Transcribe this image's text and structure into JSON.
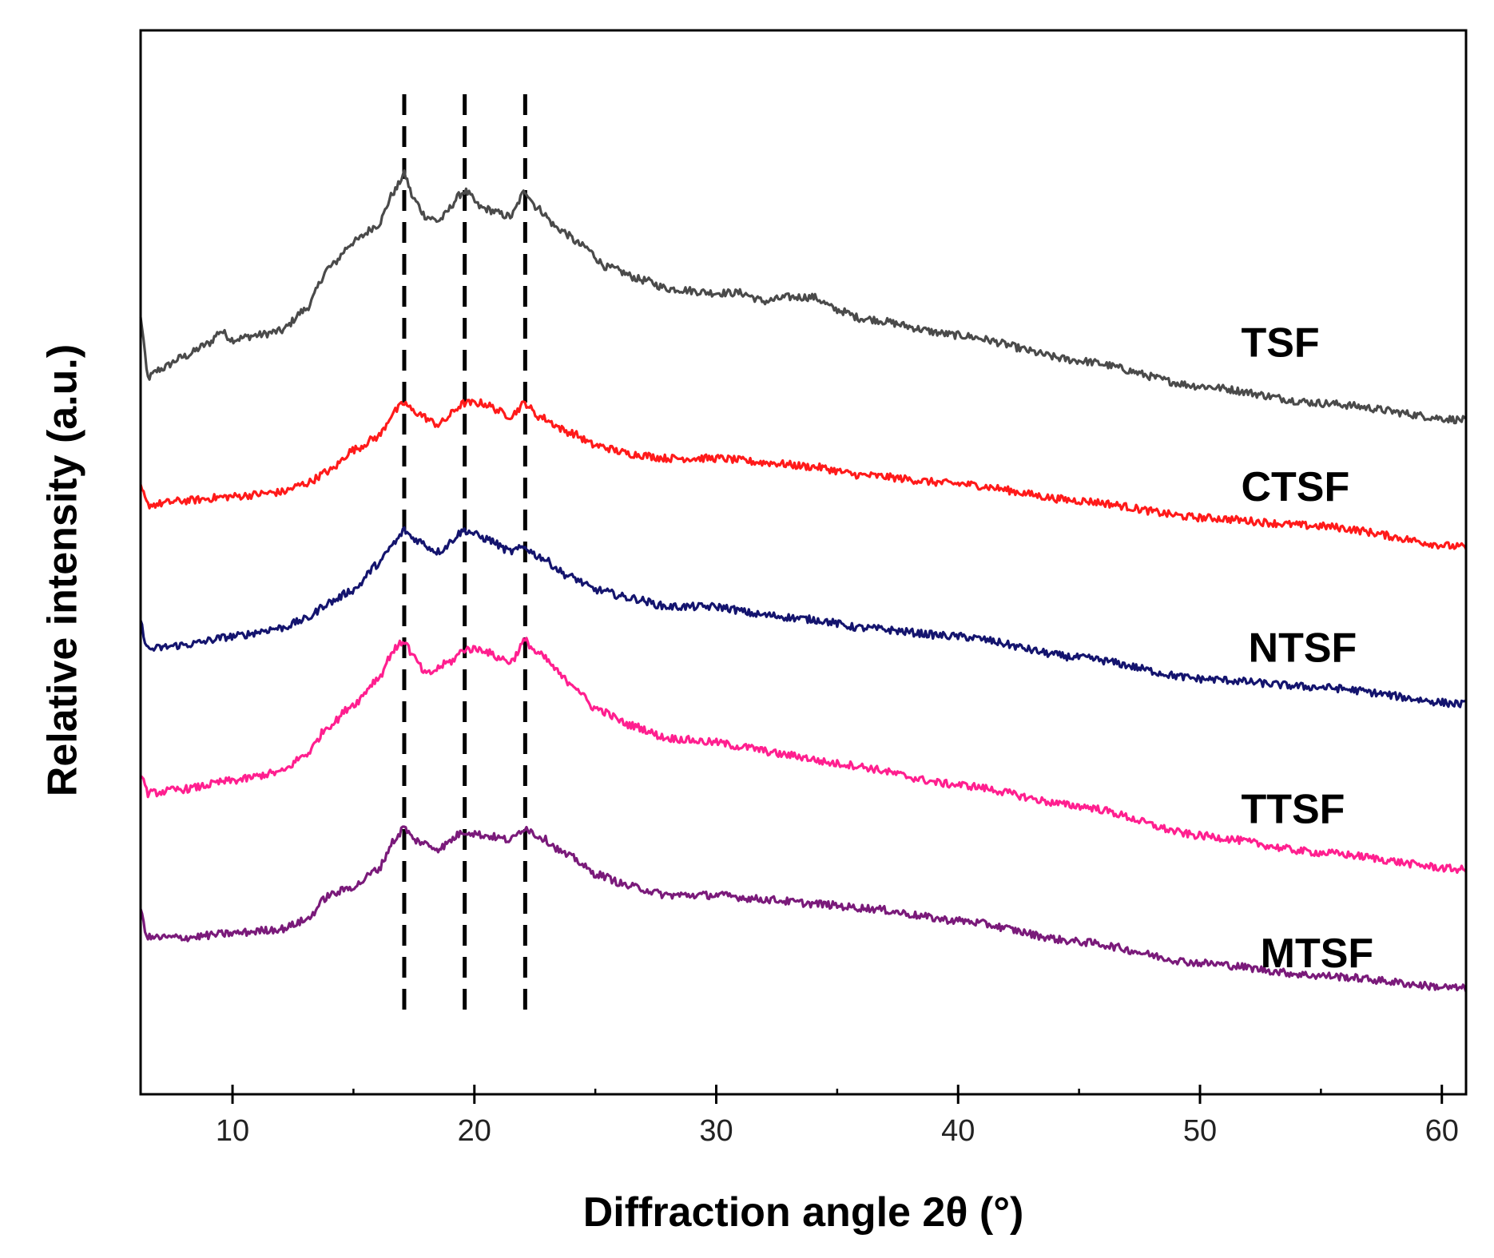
{
  "chart_data": {
    "type": "line",
    "title": "",
    "xlabel": "Diffraction angle 2θ (°)",
    "ylabel": "Relative intensity (a.u.)",
    "xlim": [
      6.2,
      61
    ],
    "ylim": [
      0,
      100
    ],
    "x_ticks": [
      10,
      20,
      30,
      40,
      50,
      60
    ],
    "x_minor_ticks": [
      15,
      25,
      35,
      45,
      55
    ],
    "reference_lines_x": [
      17.1,
      19.6,
      22.1
    ],
    "series": [
      {
        "name": "TSF",
        "color": "#4a4a4a",
        "label_anchor": [
          51.7,
          78.5
        ],
        "points": [
          [
            6.2,
            83
          ],
          [
            6.5,
            76
          ],
          [
            7,
            77
          ],
          [
            8,
            78.5
          ],
          [
            9,
            80
          ],
          [
            9.5,
            81.5
          ],
          [
            10,
            80.5
          ],
          [
            11,
            81
          ],
          [
            12,
            81.5
          ],
          [
            13,
            84
          ],
          [
            14,
            89
          ],
          [
            15,
            92
          ],
          [
            16,
            94
          ],
          [
            16.7,
            98
          ],
          [
            17.1,
            100
          ],
          [
            17.5,
            97
          ],
          [
            18,
            95
          ],
          [
            18.5,
            94.5
          ],
          [
            19.6,
            98
          ],
          [
            20.3,
            96
          ],
          [
            21.5,
            95
          ],
          [
            22.1,
            98
          ],
          [
            22.6,
            96
          ],
          [
            23.5,
            93.5
          ],
          [
            24.5,
            91.5
          ],
          [
            25.5,
            89
          ],
          [
            27,
            87.5
          ],
          [
            28,
            86.5
          ],
          [
            30,
            86
          ],
          [
            31,
            86
          ],
          [
            32,
            85
          ],
          [
            33,
            85.5
          ],
          [
            34,
            85.5
          ],
          [
            35,
            84
          ],
          [
            36,
            83
          ],
          [
            40,
            81
          ],
          [
            45,
            78
          ],
          [
            50,
            75
          ],
          [
            55,
            73
          ],
          [
            61,
            71
          ]
        ]
      },
      {
        "name": "CTSF",
        "color": "#ff1a1a",
        "label_anchor": [
          51.7,
          61.5
        ],
        "points": [
          [
            6.2,
            63
          ],
          [
            6.5,
            61
          ],
          [
            8,
            61.5
          ],
          [
            10,
            62
          ],
          [
            12,
            62.5
          ],
          [
            13,
            63.5
          ],
          [
            14,
            65
          ],
          [
            15,
            67.5
          ],
          [
            16,
            69
          ],
          [
            16.7,
            72
          ],
          [
            17.1,
            73
          ],
          [
            17.5,
            72
          ],
          [
            18.5,
            70.5
          ],
          [
            19.6,
            73
          ],
          [
            20.3,
            73
          ],
          [
            21.5,
            71.5
          ],
          [
            22.1,
            73
          ],
          [
            22.6,
            71.5
          ],
          [
            24,
            69.5
          ],
          [
            25,
            68
          ],
          [
            26.5,
            67
          ],
          [
            28,
            66.5
          ],
          [
            30,
            66.5
          ],
          [
            32,
            66
          ],
          [
            34,
            65.5
          ],
          [
            36,
            64.5
          ],
          [
            40,
            63.5
          ],
          [
            45,
            61.5
          ],
          [
            50,
            59.5
          ],
          [
            55,
            58.5
          ],
          [
            61,
            56
          ]
        ]
      },
      {
        "name": "NTSF",
        "color": "#14146e",
        "label_anchor": [
          52.0,
          42.5
        ],
        "points": [
          [
            6.2,
            47
          ],
          [
            6.5,
            44
          ],
          [
            8,
            44.5
          ],
          [
            10,
            45.5
          ],
          [
            12,
            46.5
          ],
          [
            13,
            47.5
          ],
          [
            14,
            49.5
          ],
          [
            15,
            51
          ],
          [
            16,
            54
          ],
          [
            16.7,
            56.5
          ],
          [
            17.1,
            58
          ],
          [
            17.5,
            57
          ],
          [
            18.5,
            55.5
          ],
          [
            19.6,
            58
          ],
          [
            20.5,
            57
          ],
          [
            21.5,
            55.5
          ],
          [
            22.1,
            56
          ],
          [
            22.6,
            55
          ],
          [
            24,
            52.5
          ],
          [
            25,
            51
          ],
          [
            26.5,
            50
          ],
          [
            28,
            49
          ],
          [
            30,
            49
          ],
          [
            32,
            48
          ],
          [
            34,
            47.5
          ],
          [
            36,
            46.5
          ],
          [
            40,
            45.5
          ],
          [
            45,
            43
          ],
          [
            50,
            40.5
          ],
          [
            55,
            39.5
          ],
          [
            61,
            37.5
          ]
        ]
      },
      {
        "name": "TTSF",
        "color": "#ff1f8f",
        "label_anchor": [
          51.7,
          23.5
        ],
        "points": [
          [
            6.2,
            29.5
          ],
          [
            6.5,
            27
          ],
          [
            8,
            27.5
          ],
          [
            10,
            28.5
          ],
          [
            12,
            29.5
          ],
          [
            13,
            31.5
          ],
          [
            14,
            35
          ],
          [
            15,
            37.5
          ],
          [
            16,
            40.5
          ],
          [
            16.7,
            44
          ],
          [
            17.1,
            45
          ],
          [
            17.5,
            43
          ],
          [
            18,
            41
          ],
          [
            19,
            42.5
          ],
          [
            19.6,
            44
          ],
          [
            20.3,
            44
          ],
          [
            21,
            43
          ],
          [
            21.5,
            42.5
          ],
          [
            22.1,
            45
          ],
          [
            22.6,
            43.5
          ],
          [
            24,
            40
          ],
          [
            25,
            37
          ],
          [
            26.5,
            35
          ],
          [
            28,
            33.5
          ],
          [
            30,
            33
          ],
          [
            31,
            32.5
          ],
          [
            33,
            31.5
          ],
          [
            35,
            30.5
          ],
          [
            40,
            28
          ],
          [
            45,
            25.5
          ],
          [
            50,
            22
          ],
          [
            55,
            20
          ],
          [
            61,
            18
          ]
        ]
      },
      {
        "name": "MTSF",
        "color": "#7a1a7a",
        "label_anchor": [
          52.5,
          6.5
        ],
        "points": [
          [
            6.2,
            13
          ],
          [
            6.5,
            10
          ],
          [
            8,
            10
          ],
          [
            10,
            10.5
          ],
          [
            12,
            11
          ],
          [
            13,
            12
          ],
          [
            14,
            15
          ],
          [
            15,
            16
          ],
          [
            16,
            18
          ],
          [
            16.7,
            21.5
          ],
          [
            17.1,
            23
          ],
          [
            17.5,
            21.5
          ],
          [
            18.5,
            20.5
          ],
          [
            19.6,
            22.5
          ],
          [
            20.5,
            22
          ],
          [
            21.5,
            21.5
          ],
          [
            22.1,
            23
          ],
          [
            22.6,
            22
          ],
          [
            24,
            19.5
          ],
          [
            25,
            17.5
          ],
          [
            26.5,
            16
          ],
          [
            28,
            15
          ],
          [
            30,
            15
          ],
          [
            32,
            14.5
          ],
          [
            34,
            14
          ],
          [
            36,
            13.5
          ],
          [
            40,
            12
          ],
          [
            45,
            9.5
          ],
          [
            50,
            7
          ],
          [
            55,
            5.5
          ],
          [
            61,
            4
          ]
        ]
      }
    ]
  }
}
